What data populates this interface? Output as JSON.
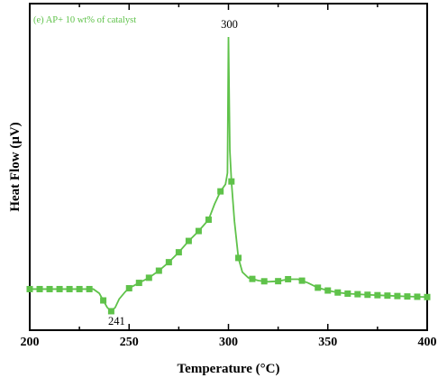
{
  "chart_data": {
    "type": "line",
    "panel_label": "(e) AP+ 10 wt% of catalyst",
    "xlabel": "Temperature (°C)",
    "ylabel": "Heat Flow (μV)",
    "xlim": [
      200,
      400
    ],
    "ylim": [
      0,
      100
    ],
    "xticks": [
      200,
      250,
      300,
      350,
      400
    ],
    "y_ticks_shown": false,
    "grid": false,
    "legend": "none",
    "colors": {
      "series": "#5fc24a",
      "axes": "#000000"
    },
    "series": [
      {
        "x": [
          200,
          205,
          210,
          215,
          220,
          225,
          230,
          232,
          235,
          237,
          239,
          241,
          243,
          245,
          248,
          250,
          255,
          260,
          265,
          270,
          275,
          280,
          285,
          290,
          293,
          296,
          298.5,
          299.5,
          300,
          300.7,
          301.5,
          303,
          305,
          307,
          310,
          315,
          320,
          325,
          330,
          335,
          340,
          345,
          350,
          355,
          360,
          370,
          380,
          390,
          400
        ],
        "y": [
          11,
          11,
          11,
          11,
          11,
          11,
          11,
          11,
          9.5,
          7,
          4.5,
          3.2,
          4.5,
          7.5,
          10,
          11.3,
          13.2,
          15,
          17.5,
          20.5,
          24,
          28,
          31.5,
          35.5,
          41,
          45.5,
          48,
          52,
          100,
          60,
          49,
          35,
          22,
          17,
          15,
          14,
          13.6,
          13.8,
          14.5,
          14.5,
          13.2,
          11.5,
          10.5,
          9.8,
          9.4,
          9,
          8.7,
          8.4,
          8.2
        ]
      }
    ],
    "markers_x": [
      200,
      205,
      210,
      215,
      220,
      225,
      230,
      237,
      241,
      250,
      255,
      260,
      265,
      270,
      275,
      280,
      285,
      290,
      296,
      301.5,
      305,
      312,
      318,
      325,
      330,
      337,
      345,
      350,
      355,
      360,
      365,
      370,
      375,
      380,
      385,
      390,
      395,
      400
    ],
    "annotations": [
      {
        "label": "300",
        "x": 300,
        "y": 100
      },
      {
        "label": "241",
        "x": 241,
        "y": 3.2
      }
    ]
  }
}
